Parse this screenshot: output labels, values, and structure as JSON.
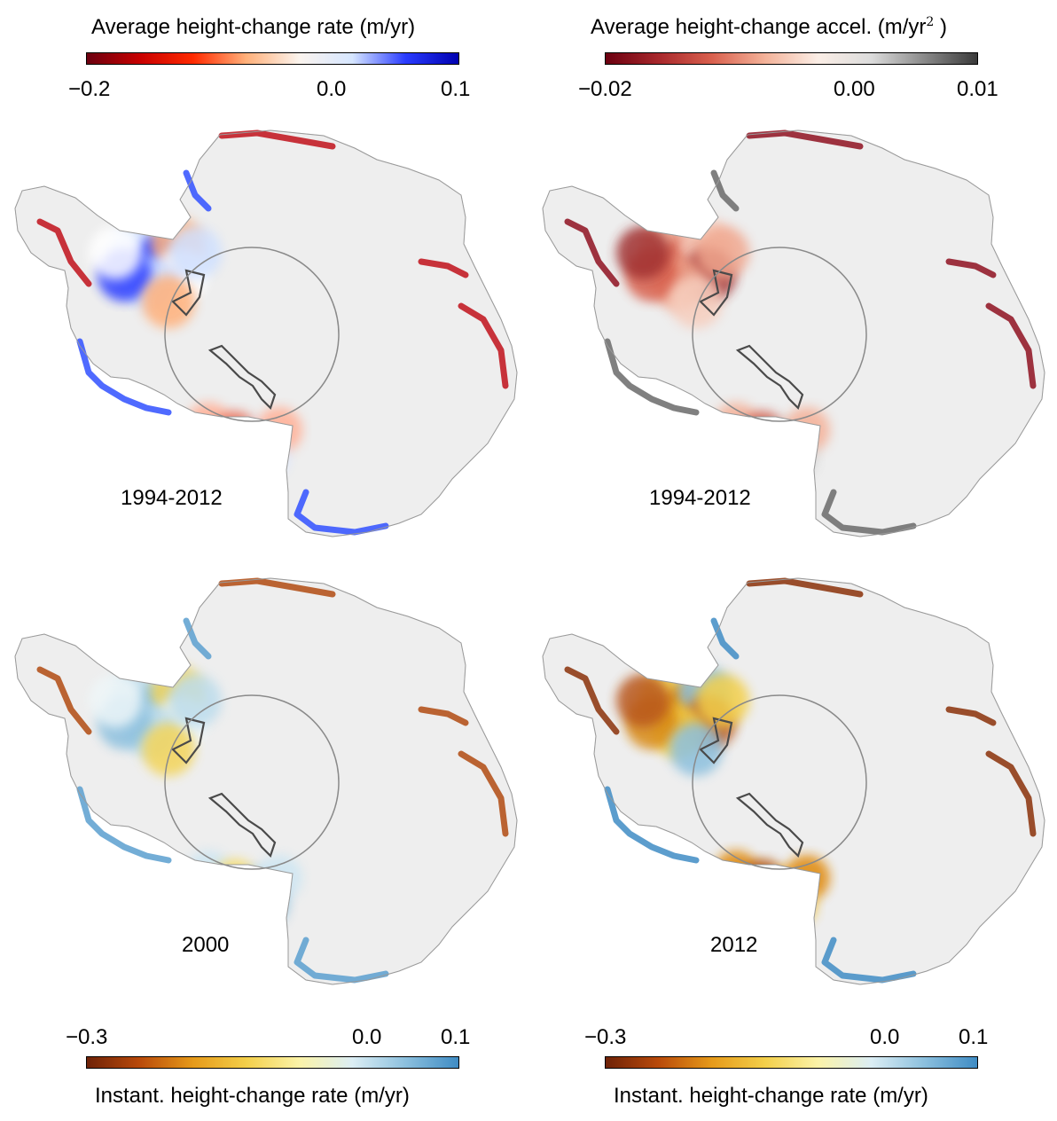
{
  "colorbars": {
    "avg_rate": {
      "title": "Average height-change rate (m/yr)",
      "ticks": [
        "−0.2",
        "0.0",
        "0.1"
      ],
      "colors": [
        "#6b0010",
        "#c80000",
        "#ff2a00",
        "#ffb07a",
        "#fbf4ee",
        "#d6e6ff",
        "#2a3cff",
        "#0000b0"
      ]
    },
    "avg_accel": {
      "title_prefix": "Average height-change accel. (m/yr",
      "title_exp": "2",
      "title_suffix": " )",
      "ticks": [
        "−0.02",
        "0.00",
        "0.01"
      ],
      "colors": [
        "#6b0010",
        "#a8282c",
        "#d9604e",
        "#f3b299",
        "#fbeee6",
        "#dcdcdc",
        "#8a8a8a",
        "#3a3a3a"
      ]
    },
    "instant_2000": {
      "title": "Instant. height-change rate (m/yr)",
      "ticks": [
        "−0.3",
        "0.0",
        "0.1"
      ],
      "colors": [
        "#6e2208",
        "#b94a0a",
        "#e69a1a",
        "#f3cf4a",
        "#fbf3a8",
        "#dceef4",
        "#8cc0de",
        "#3f8cc4"
      ]
    },
    "instant_2012": {
      "title": "Instant. height-change rate (m/yr)",
      "ticks": [
        "−0.3",
        "0.0",
        "0.1"
      ],
      "colors": [
        "#6e2208",
        "#b94a0a",
        "#e69a1a",
        "#f3cf4a",
        "#fbf3a8",
        "#dceef4",
        "#8cc0de",
        "#3f8cc4"
      ]
    }
  },
  "panels": [
    {
      "id": "top-left",
      "label": "1994-2012",
      "scheme": "rate"
    },
    {
      "id": "top-right",
      "label": "1994-2012",
      "scheme": "accel"
    },
    {
      "id": "bottom-left",
      "label": "2000",
      "scheme": "inst2000"
    },
    {
      "id": "bottom-right",
      "label": "2012",
      "scheme": "inst2012"
    }
  ],
  "schemes": {
    "rate": {
      "west": [
        "#cfe0ff",
        "#2a3cff",
        "#ffb07a",
        "#ffffff"
      ],
      "coast_warm": "#c0101a",
      "coast_cool": "#3050ff",
      "shelf": [
        "#ffb29a",
        "#e8705a",
        "#dbe6ff"
      ]
    },
    "accel": {
      "west": [
        "#f0a78f",
        "#d8604e",
        "#f6cdbd",
        "#a03030"
      ],
      "coast_warm": "#8e1020",
      "coast_cool": "#6a6a6a",
      "shelf": [
        "#f4b49c",
        "#d06050",
        "#cfcfcf"
      ]
    },
    "inst2000": {
      "west": [
        "#bcdcec",
        "#8cc0de",
        "#f3d45a",
        "#eef6f8"
      ],
      "coast_warm": "#b04a10",
      "coast_cool": "#5b9fcf",
      "shelf": [
        "#cfe6f2",
        "#f6dc6a",
        "#9dc9e3"
      ]
    },
    "inst2012": {
      "west": [
        "#f3cf4a",
        "#d88a18",
        "#8cc0de",
        "#b8571a"
      ],
      "coast_warm": "#8a3008",
      "coast_cool": "#3f8cc4",
      "shelf": [
        "#e08e16",
        "#b45410",
        "#f2c23e"
      ]
    }
  }
}
